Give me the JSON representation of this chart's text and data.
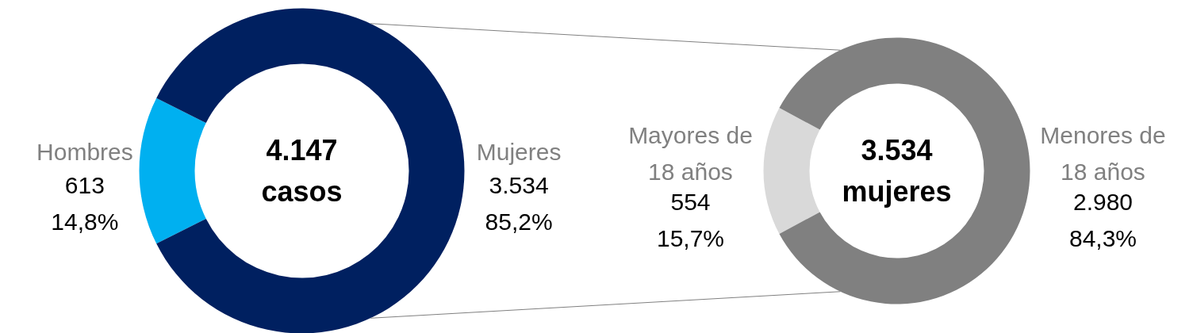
{
  "chart_data": [
    {
      "type": "donut",
      "categories": [
        "Hombres",
        "Mujeres"
      ],
      "values": [
        613,
        3534
      ],
      "colors": [
        "#00b0f0",
        "#002060"
      ],
      "value_labels": [
        "613\n14,8%",
        "3.534\n85,2%"
      ],
      "annotations": [
        "4.147\ncasos"
      ]
    },
    {
      "type": "donut",
      "categories": [
        "Mayores de 18 años",
        "Menores de 18 años"
      ],
      "values": [
        554,
        2980
      ],
      "colors": [
        "#d9d9d9",
        "#808080"
      ],
      "value_labels": [
        "554\n15,7%",
        "2.980\n84,3%"
      ],
      "annotations": [
        "3.534\nmujeres"
      ]
    }
  ]
}
